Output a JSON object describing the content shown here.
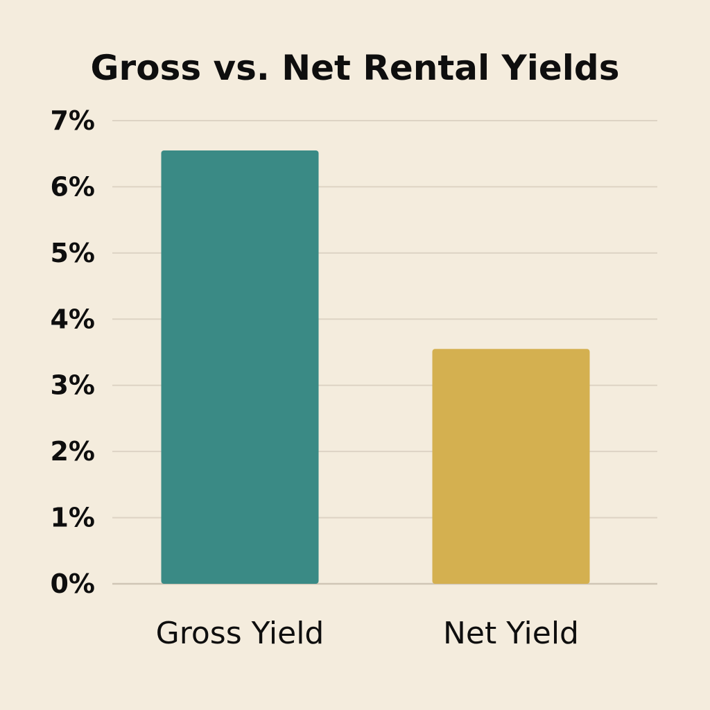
{
  "chart_data": {
    "type": "bar",
    "title": "Gross vs. Net Rental Yields",
    "xlabel": "",
    "ylabel": "",
    "categories": [
      "Gross Yield",
      "Net Yield"
    ],
    "values": [
      6.55,
      3.55
    ],
    "colors": [
      "#3a8a85",
      "#d4b050"
    ],
    "ylim": [
      0,
      7
    ],
    "yticks": [
      0,
      1,
      2,
      3,
      4,
      5,
      6,
      7
    ],
    "ytick_labels": [
      "0%",
      "1%",
      "2%",
      "3%",
      "4%",
      "5%",
      "6%",
      "7%"
    ],
    "grid": true,
    "legend": "none"
  }
}
